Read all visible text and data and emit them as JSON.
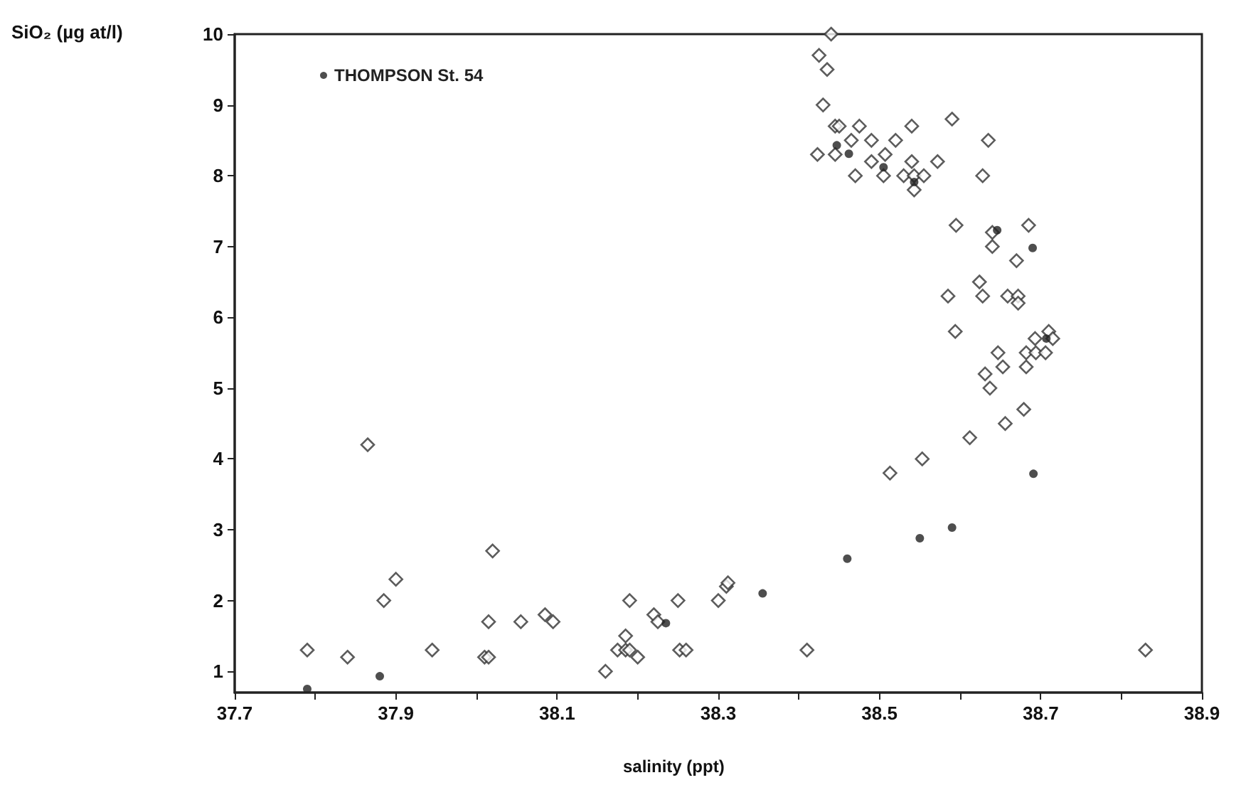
{
  "chart_data": {
    "type": "scatter",
    "xlabel": "salinity (ppt)",
    "ylabel": "SiO₂ (µg at/l)",
    "xlim": [
      37.7,
      38.9
    ],
    "xticks": [
      37.7,
      {
        "value": 37.8,
        "label": null
      },
      37.9,
      {
        "value": 38.0,
        "label": null
      },
      38.1,
      {
        "value": 38.2,
        "label": null
      },
      38.3,
      {
        "value": 38.4,
        "label": null
      },
      38.5,
      {
        "value": 38.6,
        "label": null
      },
      38.7,
      {
        "value": 38.8,
        "label": null
      },
      38.9
    ],
    "ylim": [
      0.7,
      10
    ],
    "yticks": [
      1,
      2,
      3,
      4,
      5,
      6,
      7,
      8,
      9,
      10
    ],
    "grid": false,
    "legend": "top left",
    "series": [
      {
        "color": "#333333",
        "marker": "diamond",
        "x": [
          37.79,
          37.84,
          37.865,
          37.885,
          37.9,
          37.945,
          38.01,
          38.015,
          38.015,
          38.02,
          38.055,
          38.085,
          38.095,
          38.16,
          38.175,
          38.185,
          38.185,
          38.19,
          38.19,
          38.2,
          38.22,
          38.225,
          38.25,
          38.252,
          38.26,
          38.3,
          38.31,
          38.312,
          38.41,
          38.83,
          38.44,
          38.425,
          38.435,
          38.43,
          38.445,
          38.45,
          38.475,
          38.54,
          38.59,
          38.465,
          38.49,
          38.52,
          38.635,
          38.423,
          38.445,
          38.507,
          38.49,
          38.54,
          38.572,
          38.47,
          38.505,
          38.53,
          38.543,
          38.555,
          38.543,
          38.628,
          38.595,
          38.64,
          38.685,
          38.64,
          38.67,
          38.624,
          38.585,
          38.628,
          38.659,
          38.672,
          38.672,
          38.594,
          38.71,
          38.693,
          38.715,
          38.682,
          38.694,
          38.706,
          38.647,
          38.653,
          38.682,
          38.631,
          38.637,
          38.679,
          38.656,
          38.612,
          38.553,
          38.513
        ],
        "values": [
          1.3,
          1.2,
          4.2,
          2.0,
          2.3,
          1.3,
          1.2,
          1.2,
          1.7,
          2.7,
          1.7,
          1.8,
          1.7,
          1.0,
          1.3,
          1.3,
          1.5,
          2.0,
          1.3,
          1.2,
          1.8,
          1.7,
          2.0,
          1.3,
          1.3,
          2.0,
          2.2,
          2.25,
          1.3,
          1.3,
          10.0,
          9.7,
          9.5,
          9.0,
          8.7,
          8.7,
          8.7,
          8.7,
          8.8,
          8.5,
          8.5,
          8.5,
          8.5,
          8.3,
          8.3,
          8.3,
          8.2,
          8.2,
          8.2,
          8.0,
          8.0,
          8.0,
          8.0,
          8.0,
          7.8,
          8.0,
          7.3,
          7.2,
          7.3,
          7.0,
          6.8,
          6.5,
          6.3,
          6.3,
          6.3,
          6.3,
          6.2,
          5.8,
          5.8,
          5.7,
          5.7,
          5.5,
          5.5,
          5.5,
          5.5,
          5.3,
          5.3,
          5.2,
          5.0,
          4.7,
          4.5,
          4.3,
          4.0,
          3.8
        ]
      },
      {
        "name": "THOMPSON St. 54",
        "color": "#222222",
        "marker": "circle",
        "x": [
          37.79,
          37.88,
          38.235,
          38.355,
          38.46,
          38.55,
          38.59,
          38.447,
          38.462,
          38.505,
          38.543,
          38.646,
          38.69,
          38.707,
          38.691
        ],
        "values": [
          0.75,
          0.93,
          1.68,
          2.1,
          2.59,
          2.88,
          3.03,
          8.43,
          8.31,
          8.12,
          7.91,
          7.23,
          6.98,
          5.7,
          3.79
        ]
      }
    ]
  }
}
